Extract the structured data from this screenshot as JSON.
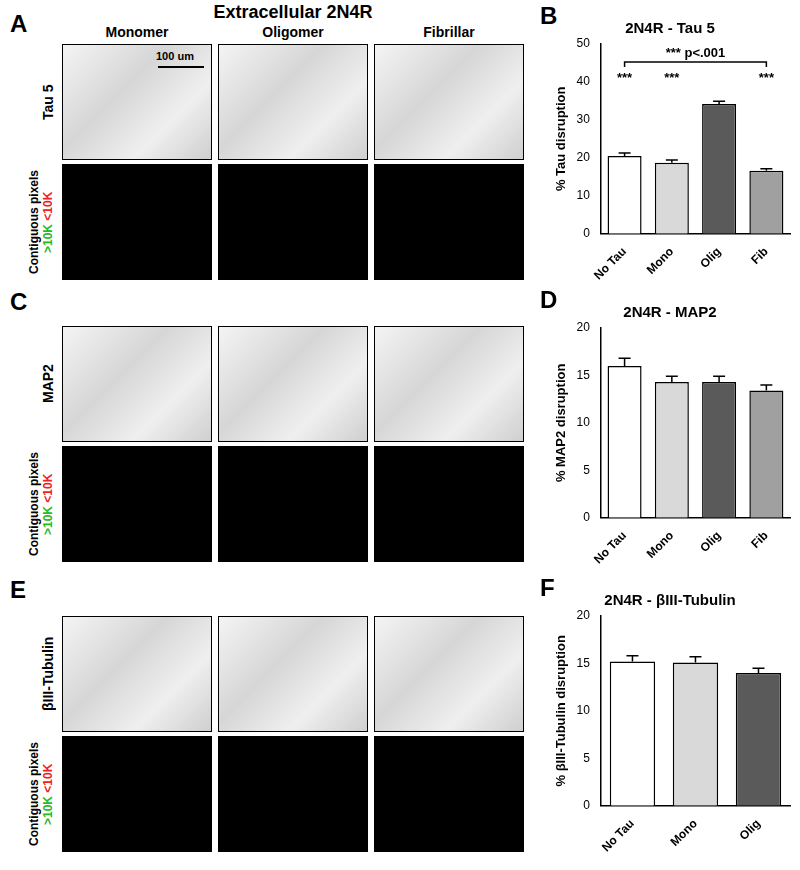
{
  "figure_title": "Extracellular 2N4R",
  "columns": [
    "Monomer",
    "Oligomer",
    "Fibrillar"
  ],
  "scale_bar": "100 um",
  "image_rows": [
    {
      "panel": "A",
      "stain": "Tau 5",
      "map_label": "Contiguous pixels",
      "above": ">10K",
      "below": "<10K"
    },
    {
      "panel": "C",
      "stain": "MAP2",
      "map_label": "Contiguous pixels",
      "above": ">10K",
      "below": "<10K"
    },
    {
      "panel": "E",
      "stain": "βIII-Tubulin",
      "map_label": "Contiguous pixels",
      "above": ">10K",
      "below": "<10K"
    }
  ],
  "chart_data": [
    {
      "panel": "B",
      "type": "bar",
      "title": "2N4R - Tau 5",
      "y_label": "% Tau disruption",
      "categories": [
        "No Tau",
        "Mono",
        "Olig",
        "Fib"
      ],
      "values": [
        20.5,
        18.7,
        34.2,
        16.6
      ],
      "errors": [
        0.8,
        0.7,
        0.7,
        0.5
      ],
      "colors": [
        "#ffffff",
        "#d9d9d9",
        "#5a5a5a",
        "#a0a0a0"
      ],
      "ylim": [
        0,
        50
      ],
      "yticks": [
        0,
        10,
        20,
        30,
        40,
        50
      ],
      "grid": false,
      "annotations": [
        {
          "text": "***",
          "category": "No Tau"
        },
        {
          "text": "***",
          "category": "Mono"
        },
        {
          "text": "***",
          "category": "Fib"
        }
      ],
      "bracket": {
        "text": "*** p<.001",
        "from": "No Tau",
        "to": "Fib"
      }
    },
    {
      "panel": "D",
      "type": "bar",
      "title": "2N4R - MAP2",
      "y_label": "% MAP2 disruption",
      "categories": [
        "No Tau",
        "Mono",
        "Olig",
        "Fib"
      ],
      "values": [
        16.0,
        14.3,
        14.3,
        13.4
      ],
      "errors": [
        0.8,
        0.6,
        0.6,
        0.6
      ],
      "colors": [
        "#ffffff",
        "#d9d9d9",
        "#5a5a5a",
        "#a0a0a0"
      ],
      "ylim": [
        0,
        20
      ],
      "yticks": [
        0,
        5,
        10,
        15,
        20
      ],
      "grid": false
    },
    {
      "panel": "F",
      "type": "bar",
      "title": "2N4R - βIII-Tubulin",
      "y_label": "% βIII-Tubulin disruption",
      "categories": [
        "No Tau",
        "Mono",
        "Olig"
      ],
      "values": [
        15.2,
        15.1,
        14.0
      ],
      "errors": [
        0.6,
        0.6,
        0.5
      ],
      "colors": [
        "#ffffff",
        "#d9d9d9",
        "#5a5a5a"
      ],
      "ylim": [
        0,
        20
      ],
      "yticks": [
        0,
        5,
        10,
        15,
        20
      ],
      "grid": false
    }
  ]
}
